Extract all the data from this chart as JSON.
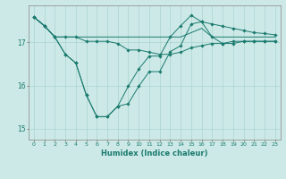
{
  "xlabel": "Humidex (Indice chaleur)",
  "background_color": "#cce9e7",
  "grid_color": "#aad4d1",
  "line_color": "#1a7a6e",
  "x_values": [
    0,
    1,
    2,
    3,
    4,
    5,
    6,
    7,
    8,
    9,
    10,
    11,
    12,
    13,
    14,
    15,
    16,
    17,
    18,
    19,
    20,
    21,
    22,
    23
  ],
  "series": [
    {
      "x": [
        0,
        1,
        2,
        3,
        4,
        5,
        6,
        7,
        8,
        9,
        10,
        11,
        12,
        13,
        14,
        15,
        16,
        17,
        18,
        19,
        20,
        21,
        22,
        23
      ],
      "y": [
        17.58,
        17.38,
        17.12,
        17.12,
        17.12,
        17.12,
        17.12,
        17.12,
        17.12,
        17.12,
        17.12,
        17.12,
        17.12,
        17.12,
        17.12,
        17.22,
        17.32,
        17.12,
        17.12,
        17.12,
        17.12,
        17.12,
        17.12,
        17.12
      ],
      "marker": false
    },
    {
      "x": [
        0,
        1,
        2,
        3,
        4,
        5,
        6,
        7,
        8,
        9,
        10,
        11,
        12,
        13,
        14,
        15,
        16,
        17,
        18,
        19,
        20,
        21,
        22,
        23
      ],
      "y": [
        17.58,
        17.38,
        17.12,
        16.72,
        16.52,
        15.78,
        15.28,
        15.28,
        15.52,
        15.58,
        15.98,
        16.32,
        16.32,
        16.78,
        16.92,
        17.42,
        17.47,
        17.12,
        16.97,
        16.97,
        17.02,
        17.02,
        17.02,
        17.02
      ],
      "marker": true
    },
    {
      "x": [
        0,
        1,
        2,
        3,
        4,
        5,
        6,
        7,
        8,
        9,
        10,
        11,
        12,
        13,
        14,
        15,
        16,
        17,
        18,
        19,
        20,
        21,
        22,
        23
      ],
      "y": [
        17.58,
        17.38,
        17.12,
        16.72,
        16.52,
        15.78,
        15.28,
        15.28,
        15.52,
        15.98,
        16.38,
        16.68,
        16.68,
        17.12,
        17.38,
        17.62,
        17.47,
        17.42,
        17.37,
        17.32,
        17.27,
        17.22,
        17.2,
        17.17
      ],
      "marker": true
    },
    {
      "x": [
        0,
        1,
        2,
        3,
        4,
        5,
        6,
        7,
        8,
        9,
        10,
        11,
        12,
        13,
        14,
        15,
        16,
        17,
        18,
        19,
        20,
        21,
        22,
        23
      ],
      "y": [
        17.58,
        17.38,
        17.12,
        17.12,
        17.12,
        17.02,
        17.02,
        17.02,
        16.97,
        16.82,
        16.82,
        16.77,
        16.72,
        16.72,
        16.77,
        16.87,
        16.92,
        16.97,
        16.97,
        17.02,
        17.02,
        17.02,
        17.02,
        17.02
      ],
      "marker": true
    }
  ],
  "ylim": [
    14.75,
    17.85
  ],
  "yticks": [
    15,
    16,
    17
  ],
  "xlim": [
    -0.5,
    23.5
  ]
}
